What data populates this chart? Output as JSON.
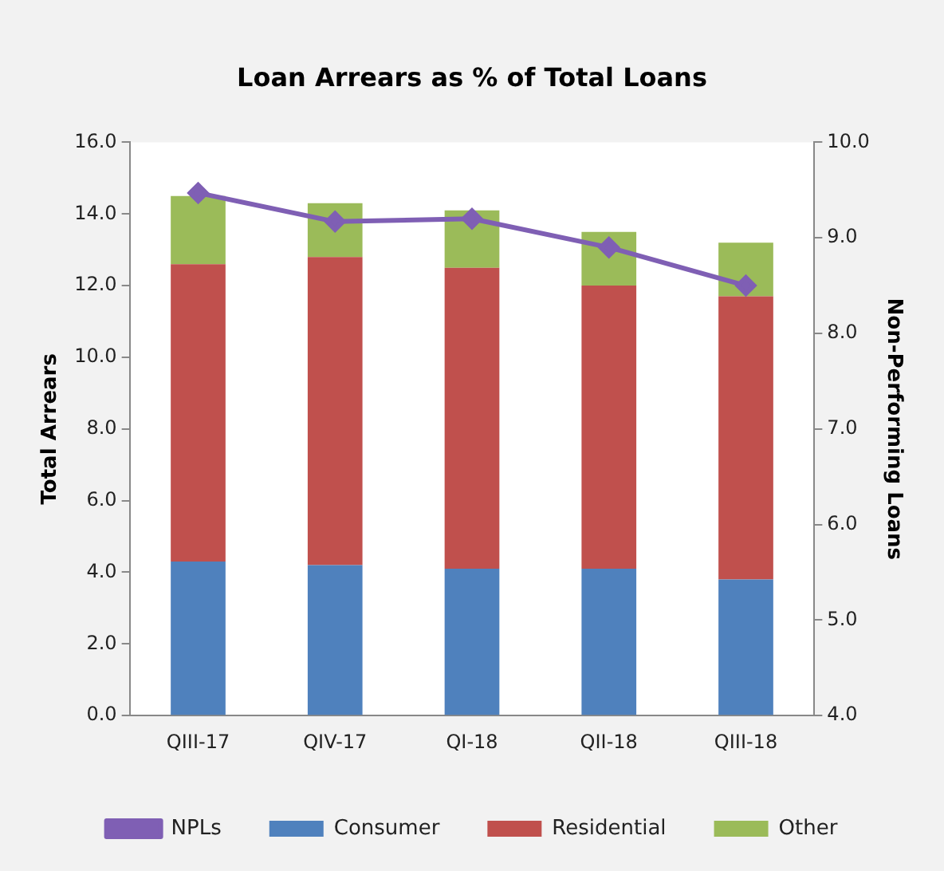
{
  "chart_data": {
    "type": "bar",
    "title": "Loan Arrears as % of Total Loans",
    "ylabel": "Total Arrears",
    "y2label": "Non-Performing Loans",
    "categories": [
      "QIII-17",
      "QIV-17",
      "QI-18",
      "QII-18",
      "QIII-18"
    ],
    "stacked": true,
    "series": [
      {
        "name": "Consumer",
        "color": "#4f81bd",
        "values": [
          4.3,
          4.2,
          4.1,
          4.1,
          3.8
        ]
      },
      {
        "name": "Residential",
        "color": "#c0504d",
        "values": [
          8.3,
          8.6,
          8.4,
          7.9,
          7.9
        ]
      },
      {
        "name": "Other",
        "color": "#9bbb59",
        "values": [
          1.9,
          1.5,
          1.6,
          1.5,
          1.5
        ]
      },
      {
        "name": "NPLs",
        "type": "line",
        "axis": "y2",
        "color": "#7f5fb4",
        "marker": "diamond",
        "values": [
          9.47,
          9.17,
          9.2,
          8.9,
          8.5
        ]
      }
    ],
    "ylim": [
      0,
      16
    ],
    "yticks": [
      {
        "value": 0,
        "label": "0.0"
      },
      {
        "value": 2,
        "label": "2.0"
      },
      {
        "value": 4,
        "label": "4.0"
      },
      {
        "value": 6,
        "label": "6.0"
      },
      {
        "value": 8,
        "label": "8.0"
      },
      {
        "value": 10,
        "label": "10.0"
      },
      {
        "value": 12,
        "label": "12.0"
      },
      {
        "value": 14,
        "label": "14.0"
      },
      {
        "value": 16,
        "label": "16.0"
      }
    ],
    "y2lim": [
      4,
      10
    ],
    "y2ticks": [
      {
        "value": 4,
        "label": "4.0"
      },
      {
        "value": 5,
        "label": "5.0"
      },
      {
        "value": 6,
        "label": "6.0"
      },
      {
        "value": 7,
        "label": "7.0"
      },
      {
        "value": 8,
        "label": "8.0"
      },
      {
        "value": 9,
        "label": "9.0"
      },
      {
        "value": 10,
        "label": "10.0"
      }
    ],
    "grid": false,
    "legend": "bottom"
  }
}
